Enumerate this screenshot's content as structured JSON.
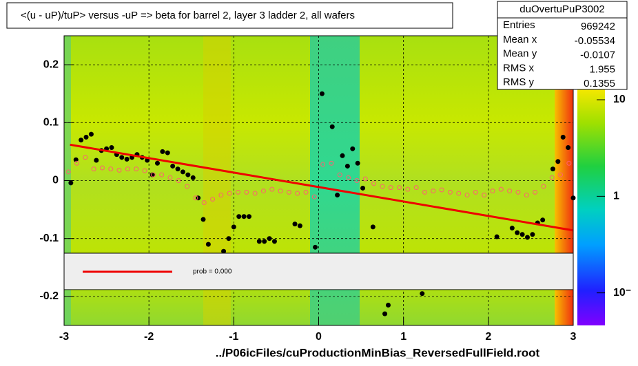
{
  "chart_data": {
    "type": "scatter",
    "title": "<(u - uP)/tuP> versus  -uP => beta for barrel 2, layer 3 ladder 2, all wafers",
    "x_label": "../P06icFiles/cuProductionMinBias_ReversedFullField.root",
    "xlim": [
      -3,
      3
    ],
    "ylim": [
      -0.25,
      0.25
    ],
    "xticks": [
      -3,
      -2,
      -1,
      0,
      1,
      2,
      3
    ],
    "yticks": [
      0.2,
      0.1,
      0,
      -0.1,
      -0.2
    ],
    "grid": true,
    "zlim": [
      0.046,
      46
    ],
    "log_z": true,
    "zticks": [
      10,
      1,
      {
        "value": 0.1,
        "label": "10⁻"
      }
    ],
    "legend_text": "prob = 0.000",
    "stats": {
      "title": "duOvertuPuP3002",
      "rows": [
        [
          "Entries",
          "969242"
        ],
        [
          "Mean x",
          "-0.05534"
        ],
        [
          "Mean y",
          "-0.0107"
        ],
        [
          "RMS x",
          "1.955"
        ],
        [
          "RMS y",
          "0.1355"
        ]
      ]
    },
    "series": [
      {
        "type": "scatter",
        "marker": "filled",
        "color": "#000000",
        "x": [
          -2.92,
          -2.86,
          -2.8,
          -2.74,
          -2.68,
          -2.62,
          -2.56,
          -2.5,
          -2.44,
          -2.38,
          -2.32,
          -2.26,
          -2.2,
          -2.14,
          -2.08,
          -2.02,
          -1.96,
          -1.9,
          -1.84,
          -1.78,
          -1.72,
          -1.66,
          -1.6,
          -1.54,
          -1.48,
          -1.42,
          -1.36,
          -1.3,
          -1.12,
          -1.06,
          -1.0,
          -0.94,
          -0.88,
          -0.82,
          -0.7,
          -0.64,
          -0.58,
          -0.52,
          -0.28,
          -0.22,
          -0.04,
          0.04,
          0.16,
          0.22,
          0.28,
          0.34,
          0.4,
          0.46,
          0.52,
          0.64,
          0.78,
          0.82,
          1.22,
          2.1,
          2.28,
          2.34,
          2.4,
          2.46,
          2.52,
          2.58,
          2.64,
          2.76,
          2.82,
          2.88,
          2.94,
          3.0
        ],
        "values": [
          -0.004,
          0.036,
          0.07,
          0.075,
          0.08,
          0.035,
          0.052,
          0.055,
          0.057,
          0.045,
          0.04,
          0.037,
          0.04,
          0.045,
          0.04,
          0.035,
          0.01,
          0.03,
          0.05,
          0.048,
          0.025,
          0.02,
          0.015,
          0.01,
          0.005,
          -0.03,
          -0.067,
          -0.11,
          -0.122,
          -0.1,
          -0.08,
          -0.062,
          -0.062,
          -0.062,
          -0.105,
          -0.105,
          -0.1,
          -0.105,
          -0.075,
          -0.078,
          -0.115,
          0.15,
          0.093,
          -0.025,
          0.043,
          0.025,
          0.055,
          0.03,
          -0.013,
          -0.08,
          -0.23,
          -0.215,
          -0.195,
          -0.097,
          -0.082,
          -0.09,
          -0.093,
          -0.098,
          -0.093,
          -0.073,
          -0.068,
          0.02,
          0.033,
          0.075,
          0.057,
          -0.03
        ]
      },
      {
        "type": "scatter",
        "marker": "open",
        "color": "#ff6070",
        "x": [
          -2.95,
          -2.85,
          -2.75,
          -2.65,
          -2.55,
          -2.45,
          -2.35,
          -2.25,
          -2.15,
          -2.05,
          -1.95,
          -1.85,
          -1.75,
          -1.65,
          -1.55,
          -1.45,
          -1.35,
          -1.25,
          -1.15,
          -1.05,
          -0.95,
          -0.85,
          -0.75,
          -0.65,
          -0.55,
          -0.45,
          -0.35,
          -0.25,
          -0.15,
          -0.05,
          0.05,
          0.15,
          0.25,
          0.35,
          0.45,
          0.55,
          0.65,
          0.75,
          0.85,
          0.95,
          1.05,
          1.15,
          1.25,
          1.35,
          1.45,
          1.55,
          1.65,
          1.75,
          1.85,
          1.95,
          2.05,
          2.15,
          2.25,
          2.35,
          2.45,
          2.55,
          2.65,
          2.75,
          2.85,
          2.95
        ],
        "values": [
          0.015,
          0.03,
          0.04,
          0.02,
          0.022,
          0.02,
          0.018,
          0.02,
          0.02,
          0.017,
          0.01,
          0.01,
          0.005,
          0.0,
          -0.01,
          -0.03,
          -0.038,
          -0.032,
          -0.025,
          -0.022,
          -0.02,
          -0.02,
          -0.022,
          -0.018,
          -0.015,
          -0.018,
          -0.02,
          -0.022,
          -0.02,
          -0.028,
          0.028,
          0.03,
          0.01,
          0.005,
          0.0,
          0.003,
          -0.005,
          -0.01,
          -0.012,
          -0.012,
          -0.015,
          -0.012,
          -0.02,
          -0.018,
          -0.016,
          -0.02,
          -0.022,
          -0.025,
          -0.02,
          -0.025,
          -0.018,
          -0.015,
          -0.018,
          -0.02,
          -0.025,
          -0.02,
          -0.01,
          0.005,
          0.01,
          0.03
        ]
      },
      {
        "type": "line",
        "color": "#ee0000",
        "x": [
          -2.93,
          3.0
        ],
        "values": [
          0.062,
          -0.086
        ]
      }
    ]
  }
}
